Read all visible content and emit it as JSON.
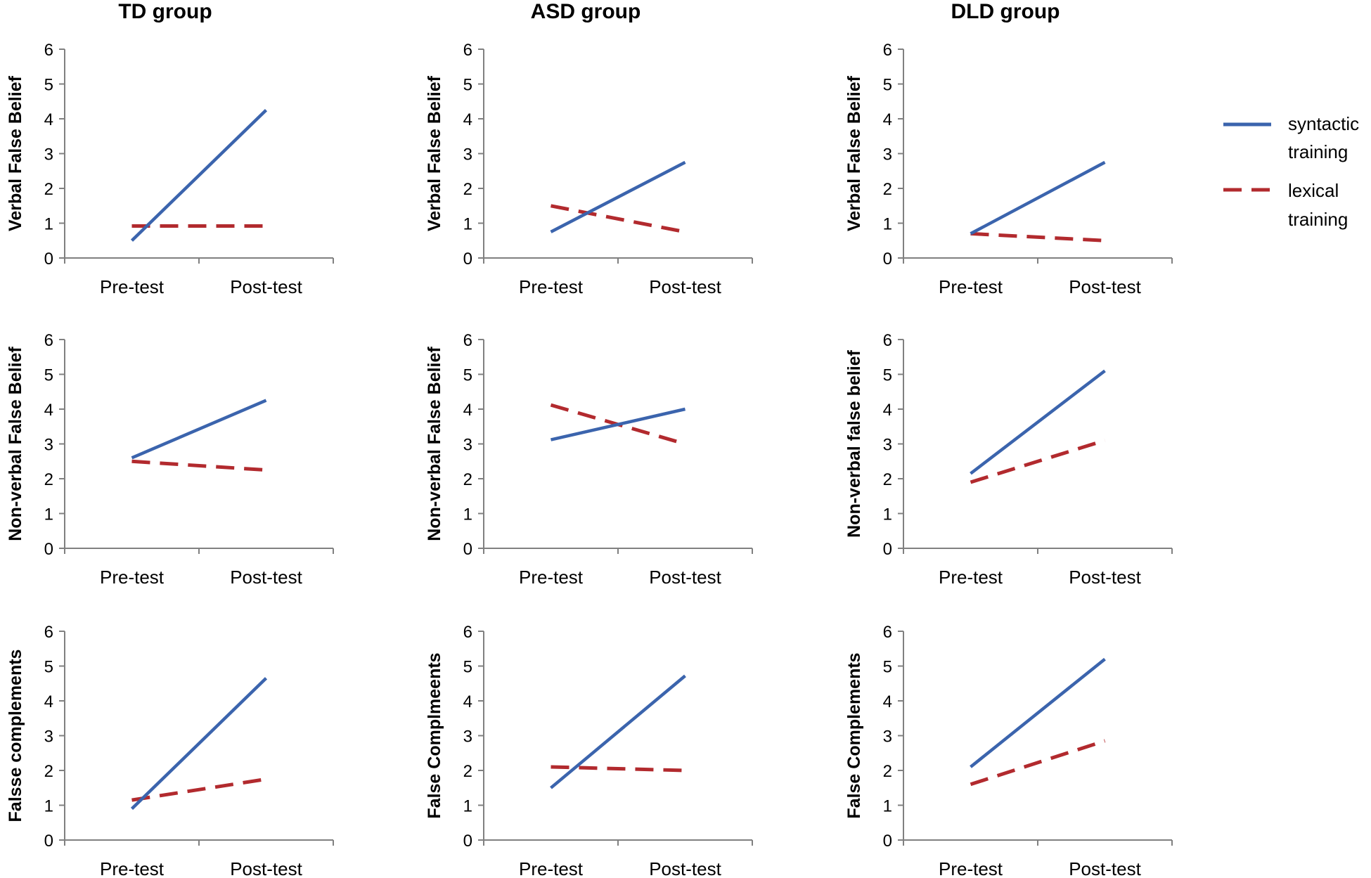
{
  "column_titles": [
    "TD group",
    "ASD group",
    "DLD group"
  ],
  "legend": [
    {
      "label_lines": [
        "syntactic",
        "training"
      ],
      "color": "#3b64ad",
      "dash": "solid"
    },
    {
      "label_lines": [
        "lexical",
        "training"
      ],
      "color": "#b22a2e",
      "dash": "dashed"
    }
  ],
  "chart_data": [
    {
      "type": "line",
      "group": "TD group",
      "title": "",
      "xlabel": "",
      "ylabel": "Verbal False Belief",
      "categories": [
        "Pre-test",
        "Post-test"
      ],
      "ylim": [
        0,
        6
      ],
      "yticks": [
        0,
        1,
        2,
        3,
        4,
        5,
        6
      ],
      "series": [
        {
          "name": "syntactic training",
          "values": [
            0.5,
            4.25
          ]
        },
        {
          "name": "lexical training",
          "values": [
            0.92,
            0.92
          ]
        }
      ]
    },
    {
      "type": "line",
      "group": "ASD group",
      "title": "",
      "xlabel": "",
      "ylabel": "Verbal False Belief",
      "categories": [
        "Pre-test",
        "Post-test"
      ],
      "ylim": [
        0,
        6
      ],
      "yticks": [
        0,
        1,
        2,
        3,
        4,
        5,
        6
      ],
      "series": [
        {
          "name": "syntactic training",
          "values": [
            0.75,
            2.75
          ]
        },
        {
          "name": "lexical training",
          "values": [
            1.5,
            0.75
          ]
        }
      ]
    },
    {
      "type": "line",
      "group": "DLD group",
      "title": "",
      "xlabel": "",
      "ylabel": "Verbal False Belief",
      "categories": [
        "Pre-test",
        "Post-test"
      ],
      "ylim": [
        0,
        6
      ],
      "yticks": [
        0,
        1,
        2,
        3,
        4,
        5,
        6
      ],
      "series": [
        {
          "name": "syntactic training",
          "values": [
            0.7,
            2.75
          ]
        },
        {
          "name": "lexical training",
          "values": [
            0.7,
            0.5
          ]
        }
      ]
    },
    {
      "type": "line",
      "group": "TD group",
      "title": "",
      "xlabel": "",
      "ylabel": "Non-verbal False Belief",
      "categories": [
        "Pre-test",
        "Post-test"
      ],
      "ylim": [
        0,
        6
      ],
      "yticks": [
        0,
        1,
        2,
        3,
        4,
        5,
        6
      ],
      "series": [
        {
          "name": "syntactic training",
          "values": [
            2.6,
            4.25
          ]
        },
        {
          "name": "lexical training",
          "values": [
            2.5,
            2.25
          ]
        }
      ]
    },
    {
      "type": "line",
      "group": "ASD group",
      "title": "",
      "xlabel": "",
      "ylabel": "Non-verbal False Belief",
      "categories": [
        "Pre-test",
        "Post-test"
      ],
      "ylim": [
        0,
        6
      ],
      "yticks": [
        0,
        1,
        2,
        3,
        4,
        5,
        6
      ],
      "series": [
        {
          "name": "syntactic training",
          "values": [
            3.12,
            4.0
          ]
        },
        {
          "name": "lexical training",
          "values": [
            4.12,
            3.0
          ]
        }
      ]
    },
    {
      "type": "line",
      "group": "DLD group",
      "title": "",
      "xlabel": "",
      "ylabel": "Non-verbal false belief",
      "categories": [
        "Pre-test",
        "Post-test"
      ],
      "ylim": [
        0,
        6
      ],
      "yticks": [
        0,
        1,
        2,
        3,
        4,
        5,
        6
      ],
      "series": [
        {
          "name": "syntactic training",
          "values": [
            2.15,
            5.1
          ]
        },
        {
          "name": "lexical training",
          "values": [
            1.9,
            3.1
          ]
        }
      ]
    },
    {
      "type": "line",
      "group": "TD group",
      "title": "",
      "xlabel": "",
      "ylabel": "Falsse complements",
      "categories": [
        "Pre-test",
        "Post-test"
      ],
      "ylim": [
        0,
        6
      ],
      "yticks": [
        0,
        1,
        2,
        3,
        4,
        5,
        6
      ],
      "series": [
        {
          "name": "syntactic training",
          "values": [
            0.9,
            4.65
          ]
        },
        {
          "name": "lexical training",
          "values": [
            1.15,
            1.75
          ]
        }
      ]
    },
    {
      "type": "line",
      "group": "ASD group",
      "title": "",
      "xlabel": "",
      "ylabel": "False Complmeents",
      "categories": [
        "Pre-test",
        "Post-test"
      ],
      "ylim": [
        0,
        6
      ],
      "yticks": [
        0,
        1,
        2,
        3,
        4,
        5,
        6
      ],
      "series": [
        {
          "name": "syntactic training",
          "values": [
            1.5,
            4.72
          ]
        },
        {
          "name": "lexical training",
          "values": [
            2.1,
            2.0
          ]
        }
      ]
    },
    {
      "type": "line",
      "group": "DLD group",
      "title": "",
      "xlabel": "",
      "ylabel": "False Complements",
      "categories": [
        "Pre-test",
        "Post-test"
      ],
      "ylim": [
        0,
        6
      ],
      "yticks": [
        0,
        1,
        2,
        3,
        4,
        5,
        6
      ],
      "series": [
        {
          "name": "syntactic training",
          "values": [
            2.1,
            5.2
          ]
        },
        {
          "name": "lexical training",
          "values": [
            1.6,
            2.85
          ]
        }
      ]
    }
  ]
}
